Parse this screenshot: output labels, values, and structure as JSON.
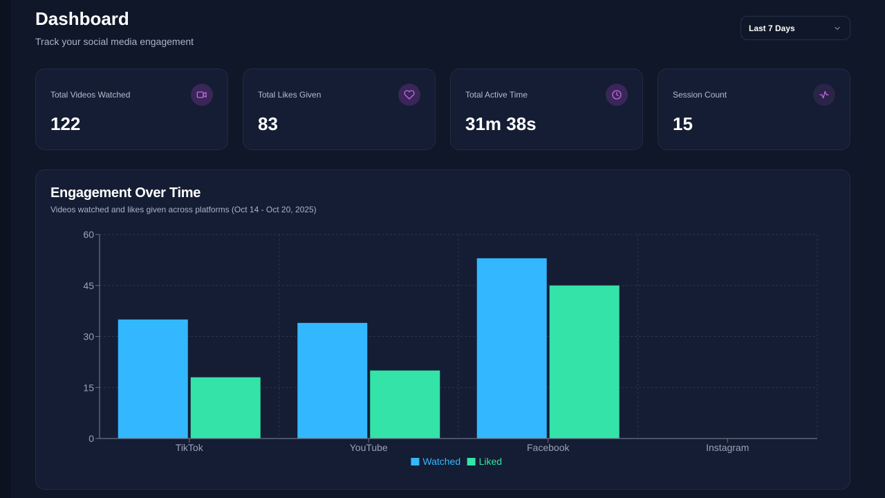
{
  "header": {
    "title": "Dashboard",
    "subtitle": "Track your social media engagement",
    "range_selected": "Last 7 Days"
  },
  "stats": [
    {
      "label": "Total Videos Watched",
      "value": "122",
      "icon": "video-icon"
    },
    {
      "label": "Total Likes Given",
      "value": "83",
      "icon": "heart-icon"
    },
    {
      "label": "Total Active Time",
      "value": "31m 38s",
      "icon": "clock-icon"
    },
    {
      "label": "Session Count",
      "value": "15",
      "icon": "activity-icon"
    }
  ],
  "colors": {
    "accent_icon": "#c06ce0",
    "watched": "#33b8ff",
    "liked": "#34e3a8"
  },
  "chart": {
    "title": "Engagement Over Time",
    "subtitle": "Videos watched and likes given across platforms (Oct 14 - Oct 20, 2025)"
  },
  "chart_data": {
    "type": "bar",
    "categories": [
      "TikTok",
      "YouTube",
      "Facebook",
      "Instagram"
    ],
    "series": [
      {
        "name": "Watched",
        "values": [
          35,
          34,
          53,
          0
        ]
      },
      {
        "name": "Liked",
        "values": [
          18,
          20,
          45,
          0
        ]
      }
    ],
    "ylim": [
      0,
      60
    ],
    "yticks": [
      0,
      15,
      30,
      45,
      60
    ],
    "grid": true,
    "legend": "bottom"
  }
}
